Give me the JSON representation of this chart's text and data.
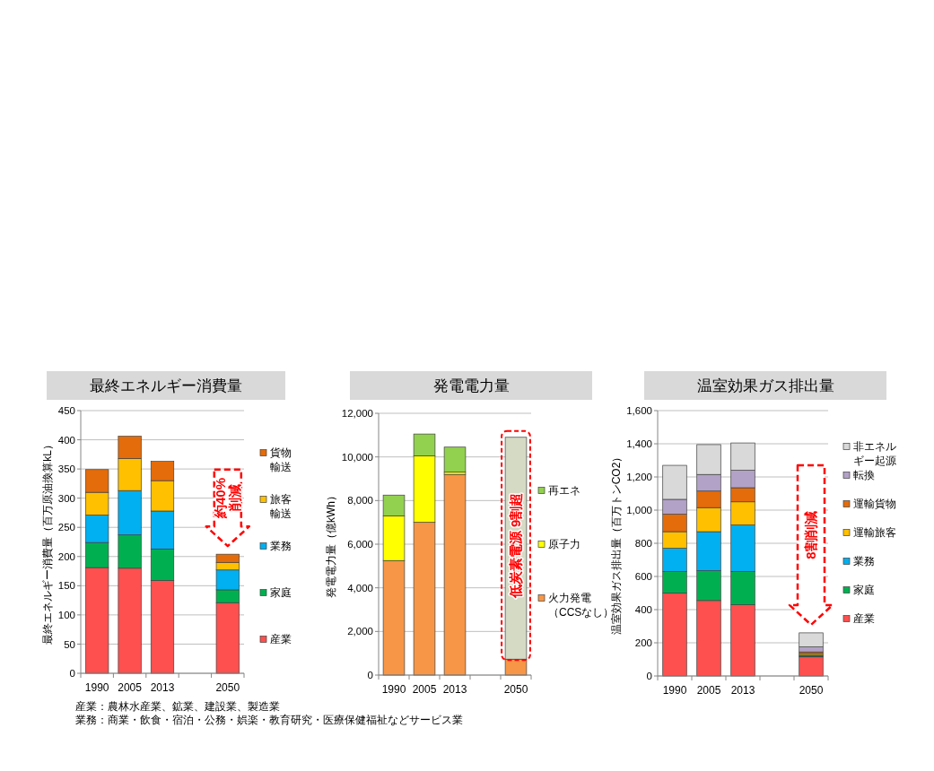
{
  "chart_data": [
    {
      "type": "bar",
      "stacked": true,
      "title": "最終エネルギー消費量",
      "ylabel": "最終エネルギー消費量（百万原油換算kL）",
      "categories": [
        "1990",
        "2005",
        "2013",
        null,
        "2050"
      ],
      "series": [
        {
          "name": "産業",
          "color": "#ff5050",
          "values": [
            181,
            180,
            159,
            null,
            121
          ]
        },
        {
          "name": "家庭",
          "color": "#00b050",
          "values": [
            43,
            57,
            54,
            null,
            22
          ]
        },
        {
          "name": "業務",
          "color": "#00b0f0",
          "values": [
            47,
            76,
            65,
            null,
            34
          ]
        },
        {
          "name": "旅客輸送",
          "color": "#ffc000",
          "values": [
            39,
            55,
            52,
            null,
            13
          ]
        },
        {
          "name": "貨物輸送",
          "color": "#e46c0a",
          "values": [
            39,
            38,
            33,
            null,
            14
          ]
        }
      ],
      "ylim": [
        0,
        450
      ],
      "yticks": [
        0,
        50,
        100,
        150,
        200,
        250,
        300,
        350,
        400,
        450
      ],
      "grid": "y",
      "legend": "right",
      "annotations": [
        "約40%削減",
        "産業：農林水産業、鉱業、建設業、製造業",
        "業務：商業・飲食・宿泊・公務・娯楽・教育研究・医療保健福祉などサービス業"
      ]
    },
    {
      "type": "bar",
      "stacked": true,
      "title": "発電電力量",
      "ylabel": "発電電力量（億kWh）",
      "categories": [
        "1990",
        "2005",
        "2013",
        null,
        "2050"
      ],
      "series": [
        {
          "name": "火力発電（CCSなし）",
          "color": "#f79646",
          "values": [
            5250,
            7000,
            9200,
            null,
            730
          ]
        },
        {
          "name": "原子力",
          "color": "#ffff00",
          "values": [
            2050,
            3050,
            100,
            null,
            null
          ]
        },
        {
          "name": "再エネ",
          "color": "#92d050",
          "values": [
            950,
            1000,
            1150,
            null,
            null
          ]
        },
        {
          "color": "#d5dac5",
          "values": [
            null,
            null,
            null,
            null,
            10170
          ]
        }
      ],
      "ylim": [
        0,
        12000
      ],
      "yticks": [
        0,
        {
          "value": 2000,
          "label": "2,000"
        },
        {
          "value": 4000,
          "label": "4,000"
        },
        {
          "value": 6000,
          "label": "6,000"
        },
        {
          "value": 8000,
          "label": "8,000"
        },
        {
          "value": 10000,
          "label": "10,000"
        },
        {
          "value": 12000,
          "label": "12,000"
        }
      ],
      "grid": "y",
      "legend": "right",
      "annotations": [
        "低炭素電源 9割超"
      ]
    },
    {
      "type": "bar",
      "stacked": true,
      "title": "温室効果ガス排出量",
      "ylabel": "温室効果ガス排出量（百万トンCO2）",
      "categories": [
        "1990",
        "2005",
        "2013",
        null,
        "2050"
      ],
      "series": [
        {
          "name": "産業",
          "color": "#ff5050",
          "values": [
            500,
            455,
            430,
            null,
            115
          ]
        },
        {
          "name": "家庭",
          "color": "#00b050",
          "values": [
            130,
            180,
            200,
            null,
            5
          ]
        },
        {
          "name": "業務",
          "color": "#00b0f0",
          "values": [
            140,
            235,
            280,
            null,
            5
          ]
        },
        {
          "name": "運輸旅客",
          "color": "#ffc000",
          "values": [
            100,
            145,
            140,
            null,
            10
          ]
        },
        {
          "name": "運輸貨物",
          "color": "#e46c0a",
          "values": [
            105,
            100,
            85,
            null,
            10
          ]
        },
        {
          "name": "転換",
          "color": "#b3a2c7",
          "values": [
            90,
            100,
            105,
            null,
            30
          ]
        },
        {
          "name": "非エネルギー起源",
          "color": "#d9d9d9",
          "values": [
            205,
            180,
            165,
            null,
            85
          ]
        }
      ],
      "ylim": [
        0,
        1600
      ],
      "yticks": [
        0,
        200,
        400,
        600,
        800,
        {
          "value": 1000,
          "label": "1,000"
        },
        {
          "value": 1200,
          "label": "1,200"
        },
        {
          "value": 1400,
          "label": "1,400"
        },
        {
          "value": 1600,
          "label": "1,600"
        }
      ],
      "grid": "y",
      "legend": "right",
      "annotations": [
        "8割削減"
      ]
    }
  ]
}
